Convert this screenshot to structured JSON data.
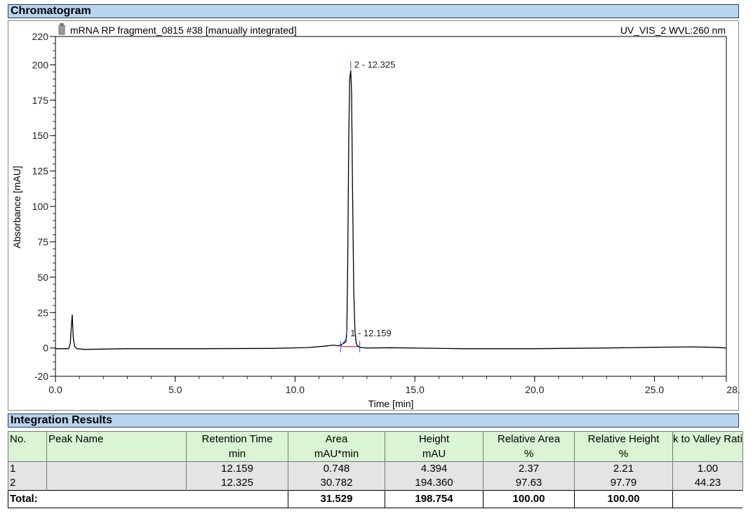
{
  "sections": {
    "chromatogram": "Chromatogram",
    "integration": "Integration Results"
  },
  "chart_data": {
    "type": "line",
    "title": "mRNA RP fragment_0815 #38 [manually integrated]",
    "channel": "UV_VIS_2 WVL:260 nm",
    "xlabel": "Time [min]",
    "ylabel": "Absorbance [mAU]",
    "xlim": [
      0.0,
      28.0
    ],
    "ylim": [
      -20,
      220
    ],
    "x_ticks": [
      "0.0",
      "5.0",
      "10.0",
      "15.0",
      "20.0",
      "25.0",
      "28.0"
    ],
    "x_tick_values": [
      0,
      5,
      10,
      15,
      20,
      25,
      28
    ],
    "y_ticks": [
      "-20",
      "0",
      "25",
      "50",
      "75",
      "100",
      "125",
      "150",
      "175",
      "200",
      "220"
    ],
    "y_tick_values": [
      -20,
      0,
      25,
      50,
      75,
      100,
      125,
      150,
      175,
      200,
      220
    ],
    "series": [
      {
        "x": [
          0.0,
          0.55,
          0.62,
          0.66,
          0.7,
          0.74,
          0.8,
          0.9,
          1.2,
          3.0,
          6.0,
          9.0,
          10.5,
          11.2,
          11.6,
          11.8,
          11.95,
          12.05,
          12.12,
          12.16,
          12.2,
          12.24,
          12.28,
          12.325,
          12.36,
          12.4,
          12.45,
          12.5,
          12.55,
          12.6,
          12.7,
          12.8,
          13.0,
          14.0,
          17.0,
          20.0,
          23.0,
          25.0,
          26.5,
          27.5,
          28.0
        ],
        "y": [
          -0.5,
          -0.5,
          3,
          14,
          23.5,
          8,
          1,
          -0.5,
          -1,
          -0.5,
          -0.5,
          -0.3,
          0.3,
          1.2,
          2.0,
          1.5,
          2.5,
          3.5,
          4.3,
          12,
          60,
          145,
          190,
          196,
          180,
          110,
          40,
          12,
          4,
          1.5,
          0.5,
          0.3,
          0,
          0.2,
          -0.5,
          -0.5,
          0,
          0.5,
          0.8,
          0.5,
          0
        ]
      }
    ],
    "peak_labels": [
      {
        "label": "1 - 12.159",
        "x": 12.159,
        "y": 4.394
      },
      {
        "label": "2 - 12.325",
        "x": 12.325,
        "y": 194.36
      }
    ],
    "baseline": {
      "x": [
        11.9,
        12.7
      ],
      "y": [
        1.0,
        1.0
      ],
      "color": "#e03030"
    },
    "grid": false,
    "legend": "none"
  },
  "table": {
    "headers": [
      {
        "line1": "No.",
        "line2": ""
      },
      {
        "line1": "Peak Name",
        "line2": ""
      },
      {
        "line1": "Retention Time",
        "line2": "min"
      },
      {
        "line1": "Area",
        "line2": "mAU*min"
      },
      {
        "line1": "Height",
        "line2": "mAU"
      },
      {
        "line1": "Relative Area",
        "line2": "%"
      },
      {
        "line1": "Relative Height",
        "line2": "%"
      },
      {
        "line1": "k to Valley Rati",
        "line2": ""
      }
    ],
    "rows": [
      {
        "no": "1",
        "name": "",
        "rt": "12.159",
        "area": "0.748",
        "height": "4.394",
        "rel_area": "2.37",
        "rel_height": "2.21",
        "pv": "1.00"
      },
      {
        "no": "2",
        "name": "",
        "rt": "12.325",
        "area": "30.782",
        "height": "194.360",
        "rel_area": "97.63",
        "rel_height": "97.79",
        "pv": "44.23"
      }
    ],
    "total": {
      "label": "Total:",
      "area": "31.529",
      "height": "198.754",
      "rel_area": "100.00",
      "rel_height": "100.00"
    }
  }
}
